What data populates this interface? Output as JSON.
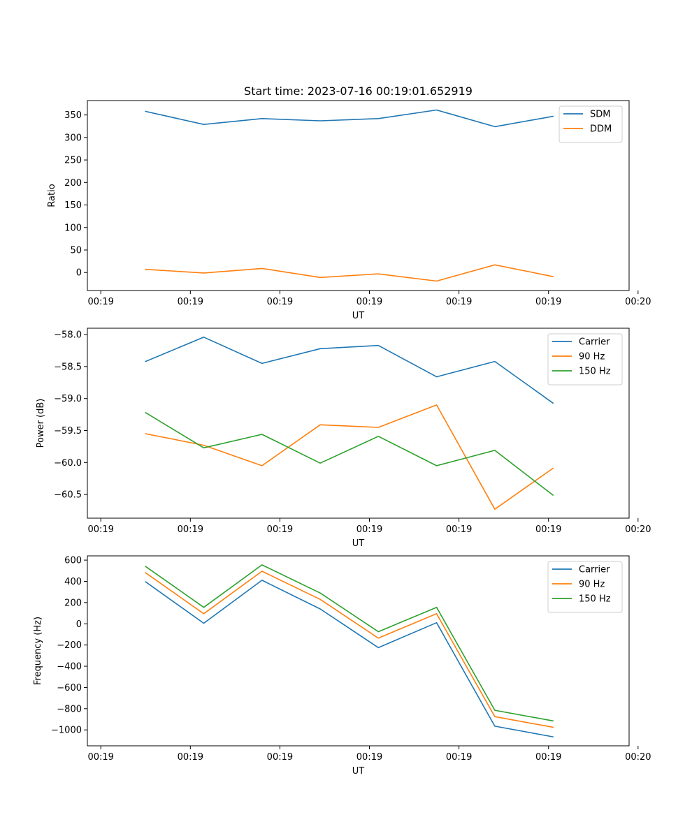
{
  "chart_data": [
    {
      "type": "line",
      "title": "Start time: 2023-07-16 00:19:01.652919",
      "xlabel": "UT",
      "ylabel": "Ratio",
      "x_tick_labels": [
        "00:19",
        "00:19",
        "00:19",
        "00:19",
        "00:19",
        "00:19",
        "00:20"
      ],
      "x_range": [
        -0.15,
        5.9
      ],
      "x": [
        0.5,
        1.15,
        1.8,
        2.45,
        3.1,
        3.75,
        4.4,
        5.05
      ],
      "ylim": [
        -40,
        382
      ],
      "y_ticks": [
        0,
        50,
        100,
        150,
        200,
        250,
        300,
        350
      ],
      "legend_loc": "upper right",
      "series": [
        {
          "name": "SDM",
          "color": "#1f77b4",
          "values": [
            358,
            329,
            342,
            337,
            342,
            361,
            324,
            347
          ]
        },
        {
          "name": "DDM",
          "color": "#ff7f0e",
          "values": [
            7,
            -1,
            9,
            -11,
            -3,
            -19,
            17,
            -9
          ]
        }
      ]
    },
    {
      "type": "line",
      "title": "",
      "xlabel": "UT",
      "ylabel": "Power (dB)",
      "x_tick_labels": [
        "00:19",
        "00:19",
        "00:19",
        "00:19",
        "00:19",
        "00:19",
        "00:20"
      ],
      "x_range": [
        -0.15,
        5.9
      ],
      "x": [
        0.5,
        1.15,
        1.8,
        2.45,
        3.1,
        3.75,
        4.4,
        5.05
      ],
      "ylim": [
        -60.87,
        -57.9
      ],
      "y_ticks": [
        -60.5,
        -60.0,
        -59.5,
        -59.0,
        -58.5,
        -58.0
      ],
      "y_tick_format": 1,
      "legend_loc": "upper right",
      "series": [
        {
          "name": "Carrier",
          "color": "#1f77b4",
          "values": [
            -58.42,
            -58.04,
            -58.45,
            -58.22,
            -58.17,
            -58.66,
            -58.42,
            -59.07
          ]
        },
        {
          "name": "90 Hz",
          "color": "#ff7f0e",
          "values": [
            -59.55,
            -59.73,
            -60.05,
            -59.41,
            -59.45,
            -59.1,
            -60.73,
            -60.09
          ]
        },
        {
          "name": "150 Hz",
          "color": "#2ca02c",
          "values": [
            -59.22,
            -59.77,
            -59.56,
            -60.01,
            -59.59,
            -60.05,
            -59.81,
            -60.51
          ]
        }
      ]
    },
    {
      "type": "line",
      "title": "",
      "xlabel": "UT",
      "ylabel": "Frequency (Hz)",
      "x_tick_labels": [
        "00:19",
        "00:19",
        "00:19",
        "00:19",
        "00:19",
        "00:19",
        "00:20"
      ],
      "x_range": [
        -0.15,
        5.9
      ],
      "x": [
        0.5,
        1.15,
        1.8,
        2.45,
        3.1,
        3.75,
        4.4,
        5.05
      ],
      "ylim": [
        -1150,
        640
      ],
      "y_ticks": [
        -1000,
        -800,
        -600,
        -400,
        -200,
        0,
        200,
        400,
        600
      ],
      "legend_loc": "upper right",
      "series": [
        {
          "name": "Carrier",
          "color": "#1f77b4",
          "values": [
            395,
            5,
            410,
            140,
            -225,
            10,
            -965,
            -1065
          ]
        },
        {
          "name": "90 Hz",
          "color": "#ff7f0e",
          "values": [
            480,
            95,
            495,
            230,
            -135,
            95,
            -875,
            -975
          ]
        },
        {
          "name": "150 Hz",
          "color": "#2ca02c",
          "values": [
            540,
            155,
            555,
            290,
            -75,
            155,
            -815,
            -915
          ]
        }
      ]
    }
  ]
}
